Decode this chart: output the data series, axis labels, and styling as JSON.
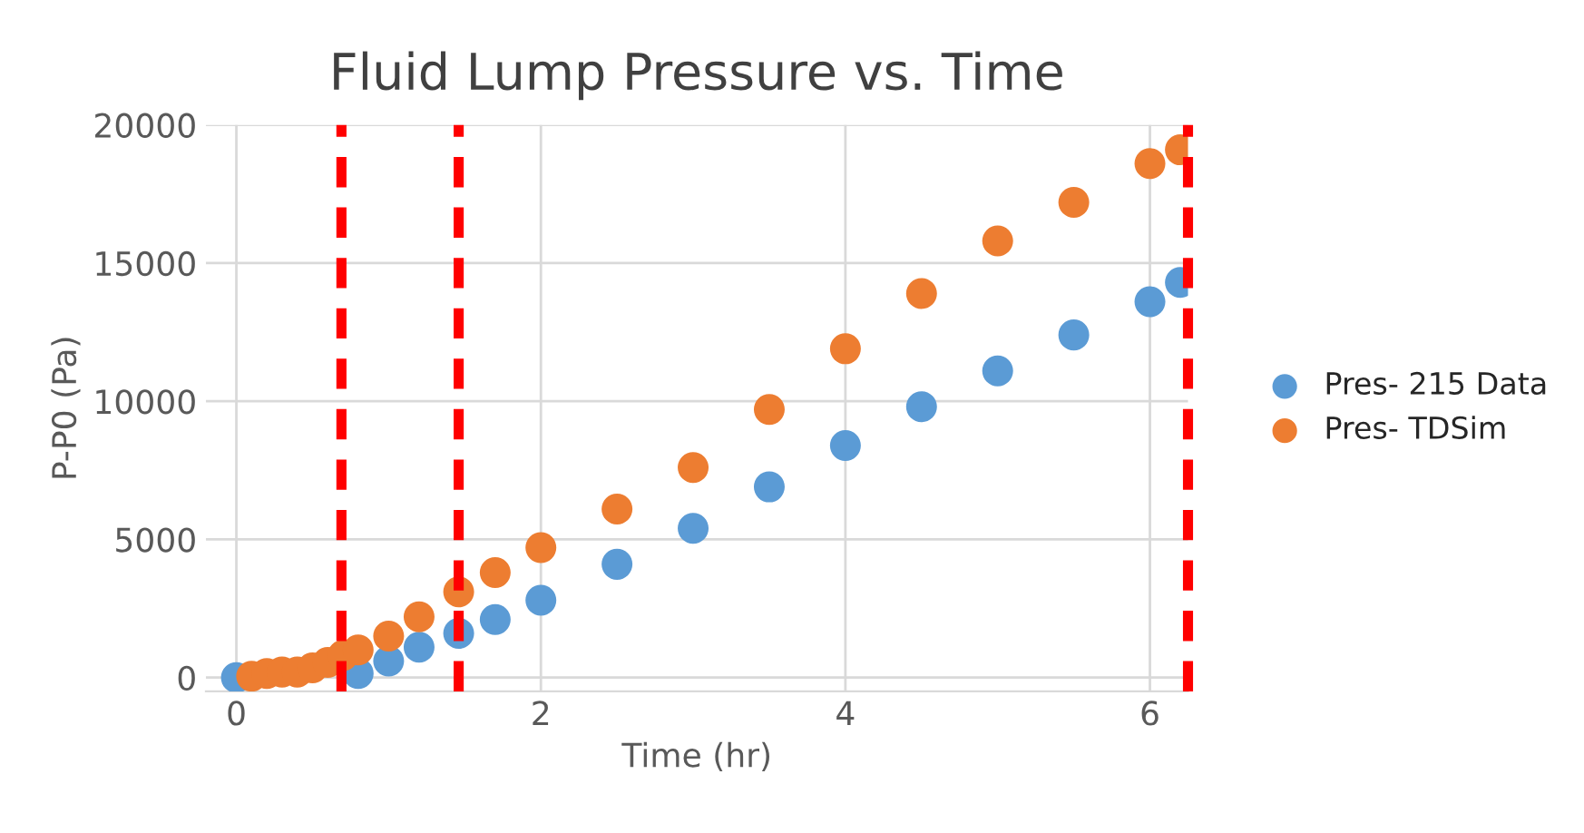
{
  "chart_data": {
    "type": "scatter",
    "title": "Fluid Lump Pressure vs. Time",
    "xlabel": "Time (hr)",
    "ylabel": "P-P0 (Pa)",
    "xlim": [
      -0.2,
      6.25
    ],
    "ylim": [
      -500,
      20000
    ],
    "xticks": [
      0,
      2,
      4,
      6
    ],
    "yticks": [
      0,
      5000,
      10000,
      15000,
      20000
    ],
    "grid": true,
    "legend": "right",
    "marker": "circle",
    "series": [
      {
        "name": "Pres- 215 Data",
        "color": "#5b9bd5",
        "x": [
          0,
          0.8,
          1.0,
          1.2,
          1.46,
          1.7,
          2.0,
          2.5,
          3.0,
          3.5,
          4.0,
          4.5,
          5.0,
          5.5,
          6.0,
          6.2
        ],
        "values": [
          0,
          150,
          600,
          1100,
          1600,
          2100,
          2800,
          4100,
          5400,
          6900,
          8400,
          9800,
          11100,
          12400,
          13600,
          14300
        ]
      },
      {
        "name": "Pres- TDSim",
        "color": "#ed7d31",
        "x": [
          0.1,
          0.2,
          0.3,
          0.4,
          0.5,
          0.6,
          0.7,
          0.8,
          1.0,
          1.2,
          1.46,
          1.7,
          2.0,
          2.5,
          3.0,
          3.5,
          4.0,
          4.5,
          5.0,
          5.5,
          6.0,
          6.2
        ],
        "values": [
          50,
          150,
          200,
          200,
          350,
          550,
          800,
          1000,
          1500,
          2200,
          3100,
          3800,
          4700,
          6100,
          7600,
          9700,
          11900,
          13900,
          15800,
          17200,
          18600,
          19100
        ]
      }
    ],
    "ref_lines": [
      {
        "axis": "x",
        "value": 0.69,
        "color": "#ff0000",
        "line_style": "dashed"
      },
      {
        "axis": "x",
        "value": 1.46,
        "color": "#ff0000",
        "line_style": "dashed"
      },
      {
        "axis": "x",
        "value": 6.25,
        "color": "#ff0000",
        "line_style": "dashed"
      }
    ]
  }
}
